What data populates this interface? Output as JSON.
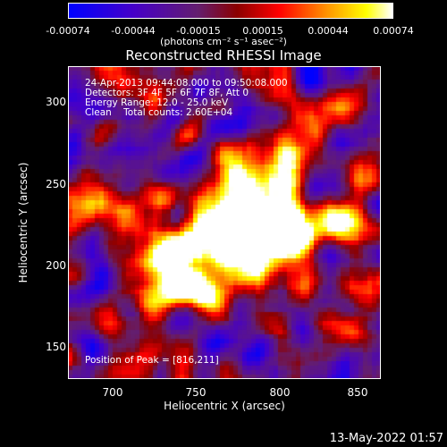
{
  "colorbar": {
    "ticks": [
      "-0.00074",
      "-0.00044",
      "-0.00015",
      "0.00015",
      "0.00044",
      "0.00074"
    ],
    "units": "(photons cm⁻² s⁻¹ asec⁻²)"
  },
  "chart_data": {
    "type": "heatmap",
    "title": "Reconstructed RHESSI Image",
    "xlabel": "Heliocentric X (arcsec)",
    "ylabel": "Heliocentric Y (arcsec)",
    "xlim": [
      670,
      864
    ],
    "ylim": [
      130,
      324
    ],
    "x_ticks": [
      "700",
      "750",
      "800",
      "850"
    ],
    "y_ticks": [
      "150",
      "200",
      "250",
      "300"
    ],
    "colorbar_range": [
      -0.00074,
      0.00074
    ],
    "peak": [
      816,
      211
    ],
    "annotations": [
      "24-Apr-2013 09:44:08.000 to 09:50:08.000",
      "Detectors: 3F 4F 5F 6F 7F 8F, Att 0",
      "Energy Range: 12.0 - 25.0 keV",
      "Clean    Total counts: 2.60E+04"
    ],
    "peak_label": "Position of Peak = [816,211]"
  },
  "footer": "13-May-2022 01:57"
}
